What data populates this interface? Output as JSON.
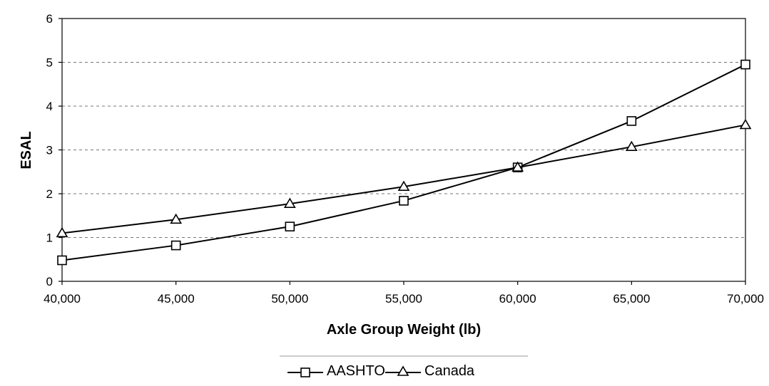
{
  "chart_data": {
    "type": "line",
    "xlabel": "Axle Group Weight (lb)",
    "ylabel": "ESAL",
    "x": [
      40000,
      45000,
      50000,
      55000,
      60000,
      65000,
      70000
    ],
    "x_tick_labels": [
      "40,000",
      "45,000",
      "50,000",
      "55,000",
      "60,000",
      "65,000",
      "70,000"
    ],
    "xlim": [
      40000,
      70000
    ],
    "ylim": [
      0,
      6
    ],
    "y_ticks": [
      0,
      1,
      2,
      3,
      4,
      5,
      6
    ],
    "grid": "horizontal dashed",
    "legend_position": "bottom",
    "series": [
      {
        "name": "AASHTO",
        "marker": "square",
        "values": [
          0.48,
          0.82,
          1.25,
          1.84,
          2.6,
          3.66,
          4.95
        ]
      },
      {
        "name": "Canada",
        "marker": "triangle",
        "values": [
          1.1,
          1.41,
          1.77,
          2.16,
          2.6,
          3.07,
          3.57
        ]
      }
    ]
  }
}
